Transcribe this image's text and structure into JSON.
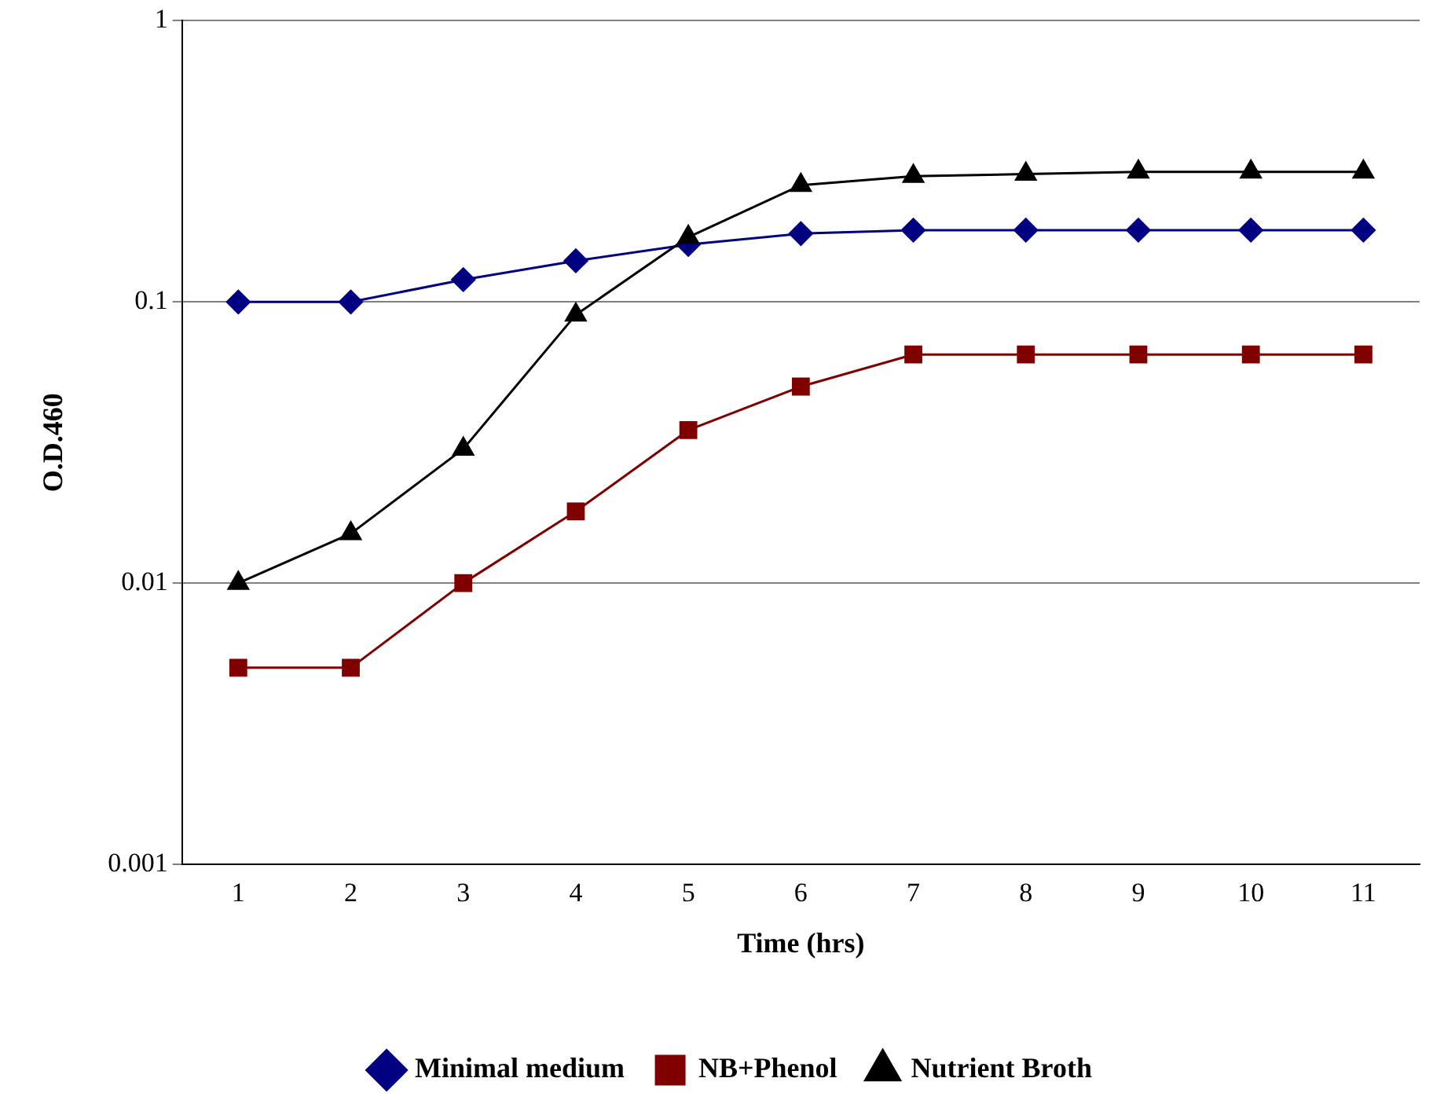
{
  "chart_data": {
    "type": "line",
    "xlabel": "Time (hrs)",
    "ylabel": "O.D.460",
    "categories": [
      "1",
      "2",
      "3",
      "4",
      "5",
      "6",
      "7",
      "8",
      "9",
      "10",
      "11"
    ],
    "series": [
      {
        "name": "Minimal medium",
        "color": "#000080",
        "marker": "diamond",
        "values": [
          0.1,
          0.1,
          0.12,
          0.14,
          0.16,
          0.175,
          0.18,
          0.18,
          0.18,
          0.18,
          0.18
        ]
      },
      {
        "name": "NB+Phenol",
        "color": "#800000",
        "marker": "square",
        "values": [
          0.005,
          0.005,
          0.01,
          0.018,
          0.035,
          0.05,
          0.065,
          0.065,
          0.065,
          0.065,
          0.065
        ]
      },
      {
        "name": "Nutrient Broth",
        "color": "#000000",
        "marker": "triangle",
        "values": [
          0.01,
          0.015,
          0.03,
          0.09,
          0.17,
          0.26,
          0.28,
          0.285,
          0.29,
          0.29,
          0.29
        ]
      }
    ],
    "log": "y",
    "ylim": [
      0.001,
      1
    ],
    "yticks": [
      0.001,
      0.01,
      0.1,
      1
    ],
    "grid": "y",
    "legend": "bottom",
    "line_style": "solid"
  }
}
